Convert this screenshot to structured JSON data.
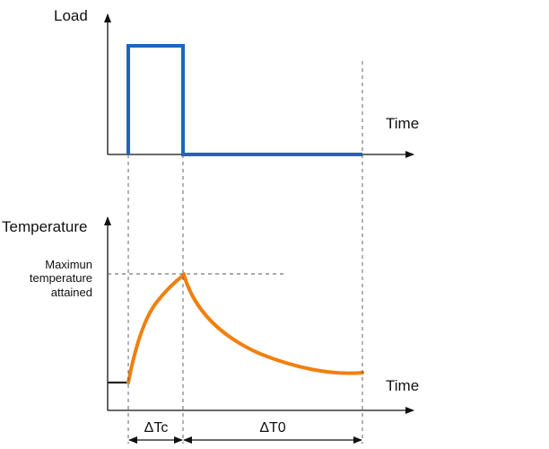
{
  "load_graph": {
    "y_label": "Load",
    "x_label": "Time",
    "signal_color": "#1e64c0"
  },
  "temperature_graph": {
    "y_label": "Temperature",
    "x_label": "Time",
    "peak_note": [
      "Maximun",
      "temperature",
      "attained"
    ],
    "curve_color": "#f08010"
  },
  "intervals": {
    "heating": "ΔTc",
    "cooling": "ΔT0"
  }
}
